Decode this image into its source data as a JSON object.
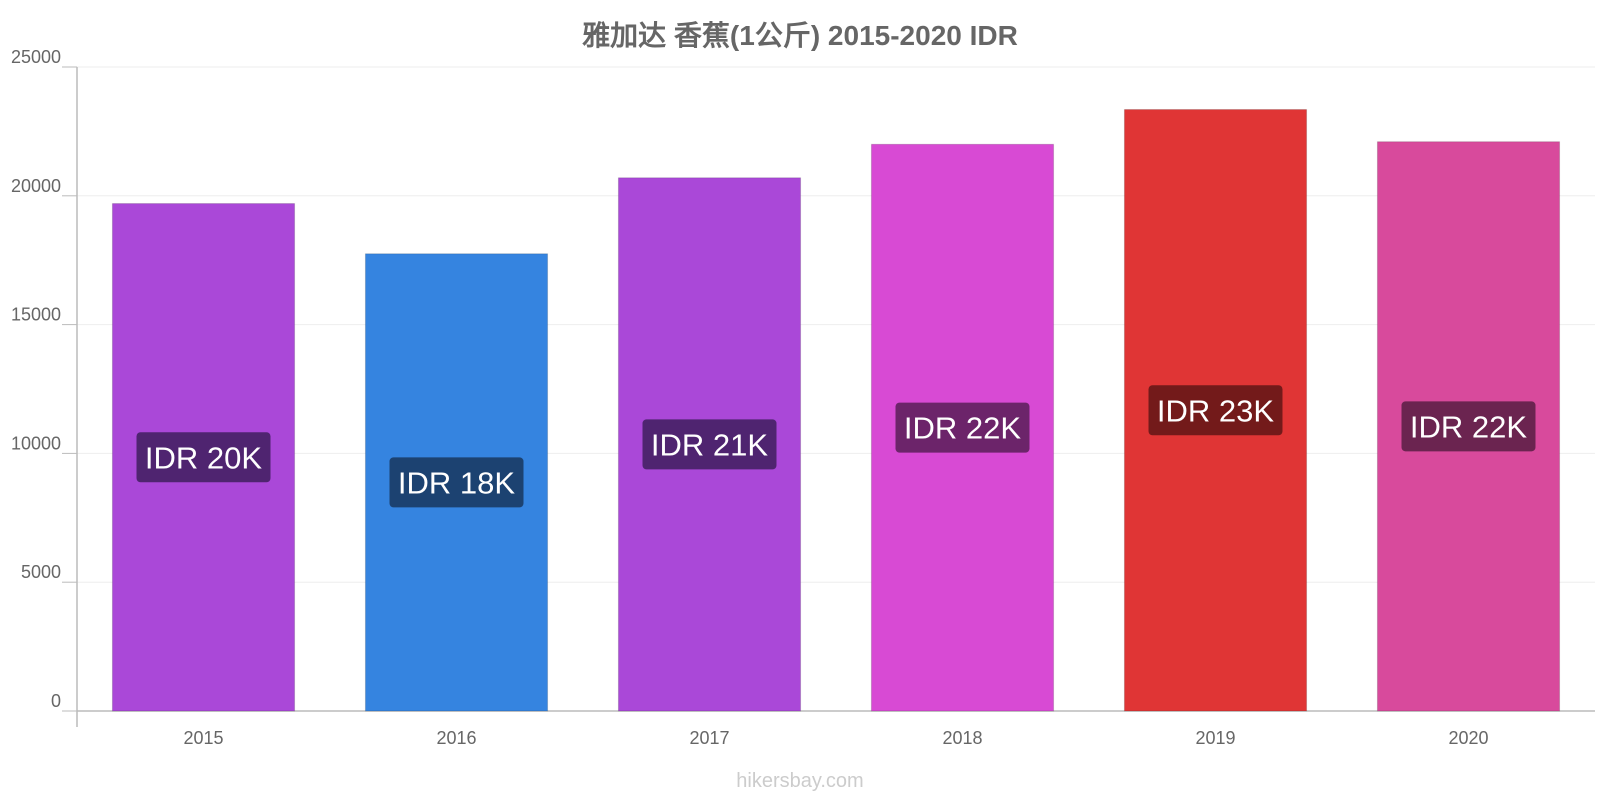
{
  "title": "雅加达 香蕉(1公斤) 2015-2020 IDR",
  "watermark": "hikersbay.com",
  "chart_data": {
    "type": "bar",
    "title": "雅加达 香蕉(1公斤) 2015-2020 IDR",
    "xlabel": "",
    "ylabel": "",
    "ylim": [
      0,
      25000
    ],
    "yticks": [
      0,
      5000,
      10000,
      15000,
      20000,
      25000
    ],
    "grid": true,
    "categories": [
      "2015",
      "2016",
      "2017",
      "2018",
      "2019",
      "2020"
    ],
    "values": [
      19700,
      17750,
      20700,
      22000,
      23350,
      22100
    ],
    "data_labels": [
      "IDR 20K",
      "IDR 18K",
      "IDR 21K",
      "IDR 22K",
      "IDR 23K",
      "IDR 22K"
    ],
    "bar_colors": [
      "#aa48d8",
      "#3584e0",
      "#aa48d8",
      "#d84ad4",
      "#e03535",
      "#d84a9c"
    ],
    "label_bg_colors": [
      "#4f2470",
      "#1c4271",
      "#4f2470",
      "#6c246a",
      "#731a1a",
      "#6b2450"
    ]
  }
}
